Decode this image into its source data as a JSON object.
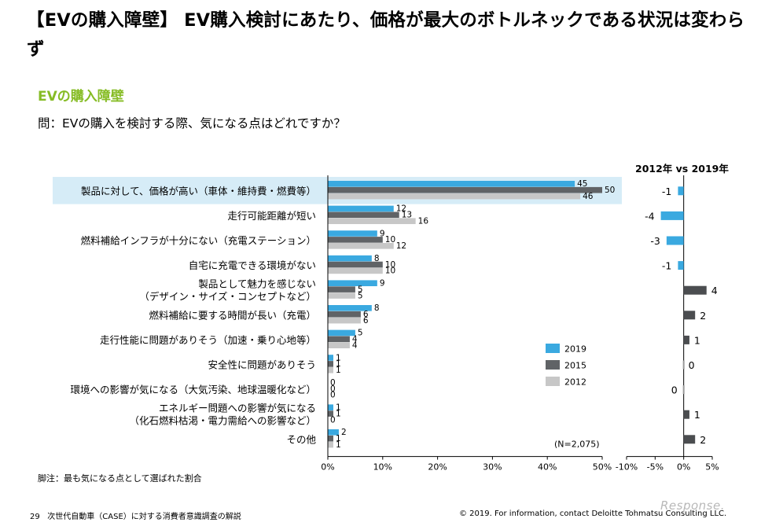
{
  "title": "【EVの購入障壁】 EV購入検討にあたり、価格が最大のボトルネックである状況は変わらず",
  "subtitle": "EVの購入障壁",
  "question": "問：EVの購入を検討する際、気になる点はどれですか？",
  "diff_heading": "2012年 vs 2019年",
  "sample_size": "(N=2,075)",
  "note": "脚注：最も気になる点として選ばれた割合",
  "footer": {
    "page_number": "29",
    "document_title": "次世代自動車（CASE）に対する消費者意識調査の解説",
    "copyright": "© 2019. For information, contact Deloitte Tohmatsu Consulting LLC."
  },
  "watermark": "Response.",
  "colors": {
    "2019": "#3aa9e0",
    "2015": "#606366",
    "2012": "#c7c7c7",
    "highlight": "#d6ecf7",
    "diff_negative": "#3aa9e0",
    "diff_positive": "#4b4d50"
  },
  "chart_data": [
    {
      "type": "bar",
      "orientation": "horizontal",
      "categories": [
        "製品に対して、価格が高い（車体・維持費・燃費等）",
        "走行可能距離が短い",
        "燃料補給インフラが十分にない（充電ステーション）",
        "自宅に充電できる環境がない",
        "製品として魅力を感じない\n（デザイン・サイズ・コンセプトなど）",
        "燃料補給に要する時間が長い（充電）",
        "走行性能に問題がありそう（加速・乗り心地等）",
        "安全性に問題がありそう",
        "環境への影響が気になる（大気汚染、地球温暖化など）",
        "エネルギー問題への影響が気になる\n（化石燃料枯渇・電力需給への影響など）",
        "その他"
      ],
      "series": [
        {
          "name": "2019",
          "values": [
            45,
            12,
            9,
            8,
            9,
            8,
            5,
            1,
            0,
            1,
            2
          ]
        },
        {
          "name": "2015",
          "values": [
            50,
            13,
            10,
            10,
            5,
            6,
            4,
            1,
            0,
            1,
            1
          ]
        },
        {
          "name": "2012",
          "values": [
            46,
            16,
            12,
            10,
            5,
            6,
            4,
            1,
            0,
            0,
            1
          ]
        }
      ],
      "xlim": [
        0,
        50
      ],
      "x_ticks": [
        "0%",
        "10%",
        "20%",
        "30%",
        "40%",
        "50%"
      ],
      "legend": [
        "2019",
        "2015",
        "2012"
      ],
      "legend_position": "bottom-right",
      "highlighted_category": 0
    },
    {
      "type": "bar",
      "orientation": "horizontal",
      "title": "2012年 vs 2019年",
      "categories": [
        "製品に対して、価格が高い（車体・維持費・燃費等）",
        "走行可能距離が短い",
        "燃料補給インフラが十分にない（充電ステーション）",
        "自宅に充電できる環境がない",
        "製品として魅力を感じない\n（デザイン・サイズ・コンセプトなど）",
        "燃料補給に要する時間が長い（充電）",
        "走行性能に問題がありそう（加速・乗り心地等）",
        "安全性に問題がありそう",
        "環境への影響が気になる（大気汚染、地球温暖化など）",
        "エネルギー問題への影響が気になる\n（化石燃料枯渇・電力需給への影響など）",
        "その他"
      ],
      "values": [
        -1,
        -4,
        -3,
        -1,
        4,
        2,
        1,
        0,
        0,
        1,
        2
      ],
      "xlim": [
        -10,
        5
      ],
      "x_ticks": [
        "-10%",
        "-5%",
        "0%",
        "5%"
      ]
    }
  ]
}
